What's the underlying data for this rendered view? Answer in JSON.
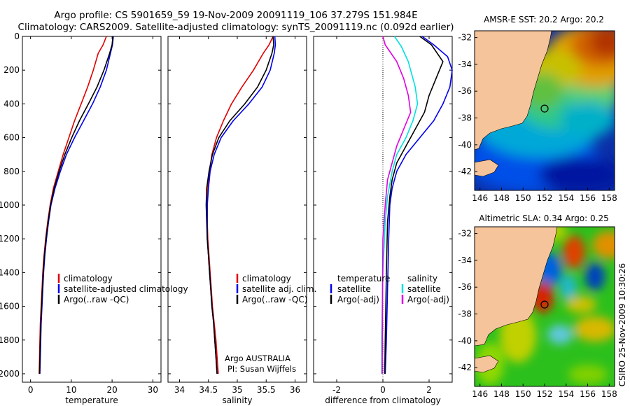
{
  "header": {
    "line1": "Argo profile: CS 5901659_59 19-Nov-2009 20091119_106 37.279S 151.984E",
    "line2": "Climatology: CARS2009. Satellite-adjusted climatology: synTS_20091119.nc (0.092d earlier)"
  },
  "side_text": "CSIRO 25-Nov-2009 10:30:26",
  "colors": {
    "climatology": "#e00000",
    "satellite": "#0000ee",
    "argo": "#000000",
    "satellite_diff": "#00e0e0",
    "argo_diff": "#e000e0",
    "land": "#f5c49a"
  },
  "chart_data": [
    {
      "id": "temperature",
      "type": "line",
      "xlabel": "temperature",
      "xlim": [
        -2,
        32
      ],
      "xticks": [
        0,
        10,
        20,
        30
      ],
      "ylim": [
        0,
        2050
      ],
      "yticks": [
        0,
        200,
        400,
        600,
        800,
        1000,
        1200,
        1400,
        1600,
        1800,
        2000
      ],
      "y_reversed": true,
      "legend": [
        "climatology",
        "satellite-adjusted climatology",
        "Argo(..raw -QC)"
      ],
      "series": [
        {
          "name": "climatology",
          "color": "#e00000",
          "points": [
            [
              18.6,
              0
            ],
            [
              17.8,
              50
            ],
            [
              16.6,
              100
            ],
            [
              15.4,
              200
            ],
            [
              14.0,
              300
            ],
            [
              12.4,
              400
            ],
            [
              10.8,
              500
            ],
            [
              9.4,
              600
            ],
            [
              8.0,
              700
            ],
            [
              6.8,
              800
            ],
            [
              5.6,
              900
            ],
            [
              4.8,
              1000
            ],
            [
              4.2,
              1100
            ],
            [
              3.7,
              1200
            ],
            [
              3.3,
              1300
            ],
            [
              3.0,
              1400
            ],
            [
              2.8,
              1500
            ],
            [
              2.6,
              1600
            ],
            [
              2.4,
              1700
            ],
            [
              2.3,
              1800
            ],
            [
              2.2,
              1900
            ],
            [
              2.1,
              2000
            ]
          ]
        },
        {
          "name": "satellite-adjusted climatology",
          "color": "#0000ee",
          "points": [
            [
              20.3,
              0
            ],
            [
              20.1,
              50
            ],
            [
              19.6,
              100
            ],
            [
              18.6,
              200
            ],
            [
              17.1,
              300
            ],
            [
              15.2,
              400
            ],
            [
              13.0,
              500
            ],
            [
              10.8,
              600
            ],
            [
              8.8,
              700
            ],
            [
              7.3,
              800
            ],
            [
              6.0,
              900
            ],
            [
              5.0,
              1000
            ],
            [
              4.4,
              1100
            ],
            [
              3.9,
              1200
            ],
            [
              3.5,
              1300
            ],
            [
              3.2,
              1400
            ],
            [
              3.0,
              1500
            ],
            [
              2.8,
              1600
            ],
            [
              2.6,
              1700
            ],
            [
              2.5,
              1800
            ],
            [
              2.4,
              1900
            ],
            [
              2.3,
              2000
            ]
          ]
        },
        {
          "name": "Argo(..raw -QC)",
          "color": "#000000",
          "points": [
            [
              20.2,
              0
            ],
            [
              20.0,
              50
            ],
            [
              19.4,
              100
            ],
            [
              18.0,
              200
            ],
            [
              16.3,
              300
            ],
            [
              14.2,
              400
            ],
            [
              12.0,
              500
            ],
            [
              10.1,
              600
            ],
            [
              8.4,
              700
            ],
            [
              7.0,
              800
            ],
            [
              5.8,
              900
            ],
            [
              4.9,
              1000
            ],
            [
              4.3,
              1100
            ],
            [
              3.8,
              1200
            ],
            [
              3.4,
              1300
            ],
            [
              3.1,
              1400
            ],
            [
              2.9,
              1500
            ],
            [
              2.7,
              1600
            ],
            [
              2.5,
              1700
            ],
            [
              2.4,
              1800
            ],
            [
              2.3,
              1900
            ],
            [
              2.2,
              2000
            ]
          ]
        }
      ]
    },
    {
      "id": "salinity",
      "type": "line",
      "xlabel": "salinity",
      "xlim": [
        33.8,
        36.2
      ],
      "xticks": [
        34,
        34.5,
        35,
        35.5,
        36
      ],
      "ylim": [
        0,
        2050
      ],
      "yticks": [
        0,
        200,
        400,
        600,
        800,
        1000,
        1200,
        1400,
        1600,
        1800,
        2000
      ],
      "y_reversed": true,
      "legend": [
        "climatology",
        "satellite adj. clim.",
        "Argo(..raw -QC)"
      ],
      "annotation": [
        "Argo AUSTRALIA",
        "PI: Susan Wijffels"
      ],
      "series": [
        {
          "name": "climatology",
          "color": "#e00000",
          "points": [
            [
              35.62,
              0
            ],
            [
              35.55,
              50
            ],
            [
              35.45,
              100
            ],
            [
              35.28,
              200
            ],
            [
              35.08,
              300
            ],
            [
              34.9,
              400
            ],
            [
              34.76,
              500
            ],
            [
              34.64,
              600
            ],
            [
              34.56,
              700
            ],
            [
              34.52,
              800
            ],
            [
              34.49,
              900
            ],
            [
              34.48,
              1000
            ],
            [
              34.48,
              1100
            ],
            [
              34.49,
              1200
            ],
            [
              34.51,
              1300
            ],
            [
              34.53,
              1400
            ],
            [
              34.55,
              1500
            ],
            [
              34.57,
              1600
            ],
            [
              34.6,
              1700
            ],
            [
              34.63,
              1800
            ],
            [
              34.65,
              1900
            ],
            [
              34.67,
              2000
            ]
          ]
        },
        {
          "name": "satellite adj. clim.",
          "color": "#0000ee",
          "points": [
            [
              35.65,
              0
            ],
            [
              35.66,
              50
            ],
            [
              35.64,
              100
            ],
            [
              35.57,
              200
            ],
            [
              35.43,
              300
            ],
            [
              35.2,
              400
            ],
            [
              34.93,
              500
            ],
            [
              34.72,
              600
            ],
            [
              34.6,
              700
            ],
            [
              34.53,
              800
            ],
            [
              34.5,
              900
            ],
            [
              34.48,
              1000
            ],
            [
              34.48,
              1100
            ],
            [
              34.48,
              1200
            ],
            [
              34.5,
              1300
            ],
            [
              34.52,
              1400
            ],
            [
              34.54,
              1500
            ],
            [
              34.56,
              1600
            ],
            [
              34.59,
              1700
            ],
            [
              34.61,
              1800
            ],
            [
              34.63,
              1900
            ],
            [
              34.65,
              2000
            ]
          ]
        },
        {
          "name": "Argo(..raw -QC)",
          "color": "#000000",
          "points": [
            [
              35.62,
              0
            ],
            [
              35.63,
              50
            ],
            [
              35.6,
              100
            ],
            [
              35.5,
              200
            ],
            [
              35.35,
              300
            ],
            [
              35.13,
              400
            ],
            [
              34.87,
              500
            ],
            [
              34.68,
              600
            ],
            [
              34.57,
              700
            ],
            [
              34.51,
              800
            ],
            [
              34.47,
              900
            ],
            [
              34.46,
              1000
            ],
            [
              34.47,
              1100
            ],
            [
              34.48,
              1200
            ],
            [
              34.5,
              1300
            ],
            [
              34.52,
              1400
            ],
            [
              34.54,
              1500
            ],
            [
              34.56,
              1600
            ],
            [
              34.59,
              1700
            ],
            [
              34.61,
              1800
            ],
            [
              34.63,
              1900
            ],
            [
              34.65,
              2000
            ]
          ]
        }
      ]
    },
    {
      "id": "difference",
      "type": "line",
      "xlabel": "difference from climatology",
      "xlim": [
        -3,
        3
      ],
      "xticks": [
        -2,
        0,
        2
      ],
      "ylim": [
        0,
        2050
      ],
      "yticks": [
        0,
        200,
        400,
        600,
        800,
        1000,
        1200,
        1400,
        1600,
        1800,
        2000
      ],
      "y_reversed": true,
      "zero_line": true,
      "legend_left": {
        "title": "temperature",
        "items": [
          "satellite",
          "Argo(-adj)"
        ]
      },
      "legend_right": {
        "title": "salinity",
        "items": [
          "satellite",
          "Argo(-adj)"
        ]
      },
      "series": [
        {
          "name": "temperature satellite",
          "color": "#0000ee",
          "points": [
            [
              1.7,
              0
            ],
            [
              2.2,
              50
            ],
            [
              2.8,
              120
            ],
            [
              3.0,
              200
            ],
            [
              2.9,
              300
            ],
            [
              2.6,
              400
            ],
            [
              2.2,
              500
            ],
            [
              1.6,
              600
            ],
            [
              1.0,
              700
            ],
            [
              0.6,
              800
            ],
            [
              0.4,
              900
            ],
            [
              0.3,
              1000
            ],
            [
              0.25,
              1200
            ],
            [
              0.2,
              1500
            ],
            [
              0.15,
              1800
            ],
            [
              0.1,
              2000
            ]
          ]
        },
        {
          "name": "temperature Argo(-adj)",
          "color": "#000000",
          "points": [
            [
              1.6,
              0
            ],
            [
              2.1,
              50
            ],
            [
              2.6,
              150
            ],
            [
              2.3,
              250
            ],
            [
              2.0,
              350
            ],
            [
              1.8,
              450
            ],
            [
              1.4,
              550
            ],
            [
              1.0,
              650
            ],
            [
              0.6,
              750
            ],
            [
              0.4,
              850
            ],
            [
              0.3,
              950
            ],
            [
              0.2,
              1100
            ],
            [
              0.15,
              1400
            ],
            [
              0.1,
              1800
            ],
            [
              0.08,
              2000
            ]
          ]
        },
        {
          "name": "salinity satellite",
          "color": "#00e0e0",
          "points": [
            [
              0.5,
              0
            ],
            [
              0.8,
              60
            ],
            [
              1.1,
              150
            ],
            [
              1.4,
              300
            ],
            [
              1.5,
              400
            ],
            [
              1.3,
              500
            ],
            [
              1.0,
              600
            ],
            [
              0.6,
              700
            ],
            [
              0.4,
              800
            ],
            [
              0.2,
              950
            ],
            [
              0.1,
              1100
            ],
            [
              0.0,
              1400
            ],
            [
              -0.05,
              1800
            ],
            [
              -0.05,
              2000
            ]
          ]
        },
        {
          "name": "salinity Argo(-adj)",
          "color": "#e000e0",
          "points": [
            [
              0.0,
              0
            ],
            [
              0.1,
              50
            ],
            [
              0.6,
              150
            ],
            [
              0.9,
              250
            ],
            [
              1.1,
              350
            ],
            [
              1.2,
              450
            ],
            [
              0.9,
              550
            ],
            [
              0.6,
              650
            ],
            [
              0.4,
              750
            ],
            [
              0.2,
              850
            ],
            [
              0.1,
              1000
            ],
            [
              0.0,
              1200
            ],
            [
              -0.02,
              1600
            ],
            [
              -0.03,
              2000
            ]
          ]
        }
      ]
    },
    {
      "id": "sst_map",
      "type": "heatmap",
      "title": "AMSR-E SST: 20.2  Argo: 20.2",
      "xlim": [
        145.5,
        158.5
      ],
      "xticks": [
        146,
        148,
        150,
        152,
        154,
        156,
        158
      ],
      "ylim": [
        -43.4,
        -31.5
      ],
      "yticks": [
        -32,
        -34,
        -36,
        -38,
        -40,
        -42
      ],
      "marker": [
        152.0,
        -37.3
      ]
    },
    {
      "id": "sla_map",
      "type": "heatmap",
      "title": "Altimetric SLA: 0.34  Argo: 0.25",
      "xlim": [
        145.5,
        158.5
      ],
      "xticks": [
        146,
        148,
        150,
        152,
        154,
        156,
        158
      ],
      "ylim": [
        -43.4,
        -31.5
      ],
      "yticks": [
        -32,
        -34,
        -36,
        -38,
        -40,
        -42
      ],
      "marker": [
        152.0,
        -37.3
      ]
    }
  ]
}
